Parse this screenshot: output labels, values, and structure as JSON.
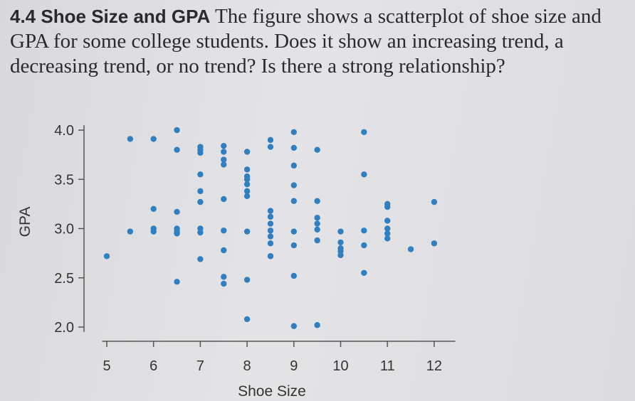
{
  "problem": {
    "number": "4.4",
    "title": "Shoe Size and GPA",
    "text": "The figure shows a scatterplot of shoe size and GPA for some college students. Does it show an increasing trend, a decreasing trend, or no trend? Is there a strong relationship?"
  },
  "chart_data": {
    "type": "scatter",
    "xlabel": "Shoe Size",
    "ylabel": "GPA",
    "xticks": [
      "5",
      "6",
      "7",
      "8",
      "9",
      "10",
      "11",
      "12"
    ],
    "yticks": [
      "2.0",
      "2.5",
      "3.0",
      "3.5",
      "4.0"
    ],
    "xlim": [
      4.7,
      12.3
    ],
    "ylim": [
      1.85,
      4.1
    ],
    "grid": false,
    "point_color": "#2f7fc1",
    "x": [
      5,
      5.5,
      5.5,
      6,
      6,
      6,
      6,
      6.5,
      6.5,
      6.5,
      6.5,
      6.5,
      6.5,
      6.5,
      7,
      7,
      7,
      7,
      7,
      7,
      7,
      7,
      7,
      7.5,
      7.5,
      7.5,
      7.5,
      7.5,
      7.5,
      7.5,
      7.5,
      7.5,
      8,
      8,
      8,
      8,
      8,
      8,
      8,
      8,
      8,
      8,
      8.5,
      8.5,
      8.5,
      8.5,
      8.5,
      8.5,
      8.5,
      8.5,
      8.5,
      8.5,
      9,
      9,
      9,
      9,
      9,
      9,
      9,
      9,
      9,
      9.5,
      9.5,
      9.5,
      9.5,
      9.5,
      9.5,
      9.5,
      10,
      10,
      10,
      10,
      10,
      10.5,
      10.5,
      10.5,
      10.5,
      10.5,
      11,
      11,
      11,
      11,
      11,
      11,
      11.5,
      12,
      12
    ],
    "y": [
      2.72,
      3.91,
      2.97,
      3.91,
      3.2,
      3.0,
      2.97,
      4.0,
      3.8,
      3.17,
      3.0,
      2.97,
      2.95,
      2.46,
      3.83,
      3.8,
      3.77,
      3.55,
      3.38,
      3.27,
      3.0,
      2.96,
      2.69,
      3.84,
      3.78,
      3.7,
      3.65,
      3.3,
      2.98,
      2.78,
      2.51,
      2.44,
      3.78,
      3.6,
      3.53,
      3.5,
      3.45,
      3.38,
      3.33,
      2.97,
      2.48,
      2.08,
      3.9,
      3.83,
      3.18,
      3.12,
      3.05,
      2.98,
      2.92,
      2.85,
      2.72,
      2.72,
      3.98,
      3.82,
      3.64,
      3.44,
      3.28,
      2.97,
      2.83,
      2.52,
      2.01,
      3.8,
      3.28,
      3.11,
      3.05,
      2.99,
      2.88,
      2.02,
      2.97,
      2.86,
      2.8,
      2.77,
      2.73,
      3.98,
      3.55,
      2.98,
      2.83,
      2.55,
      3.25,
      3.22,
      3.08,
      3.0,
      2.95,
      2.9,
      2.79,
      3.27,
      2.85
    ]
  }
}
